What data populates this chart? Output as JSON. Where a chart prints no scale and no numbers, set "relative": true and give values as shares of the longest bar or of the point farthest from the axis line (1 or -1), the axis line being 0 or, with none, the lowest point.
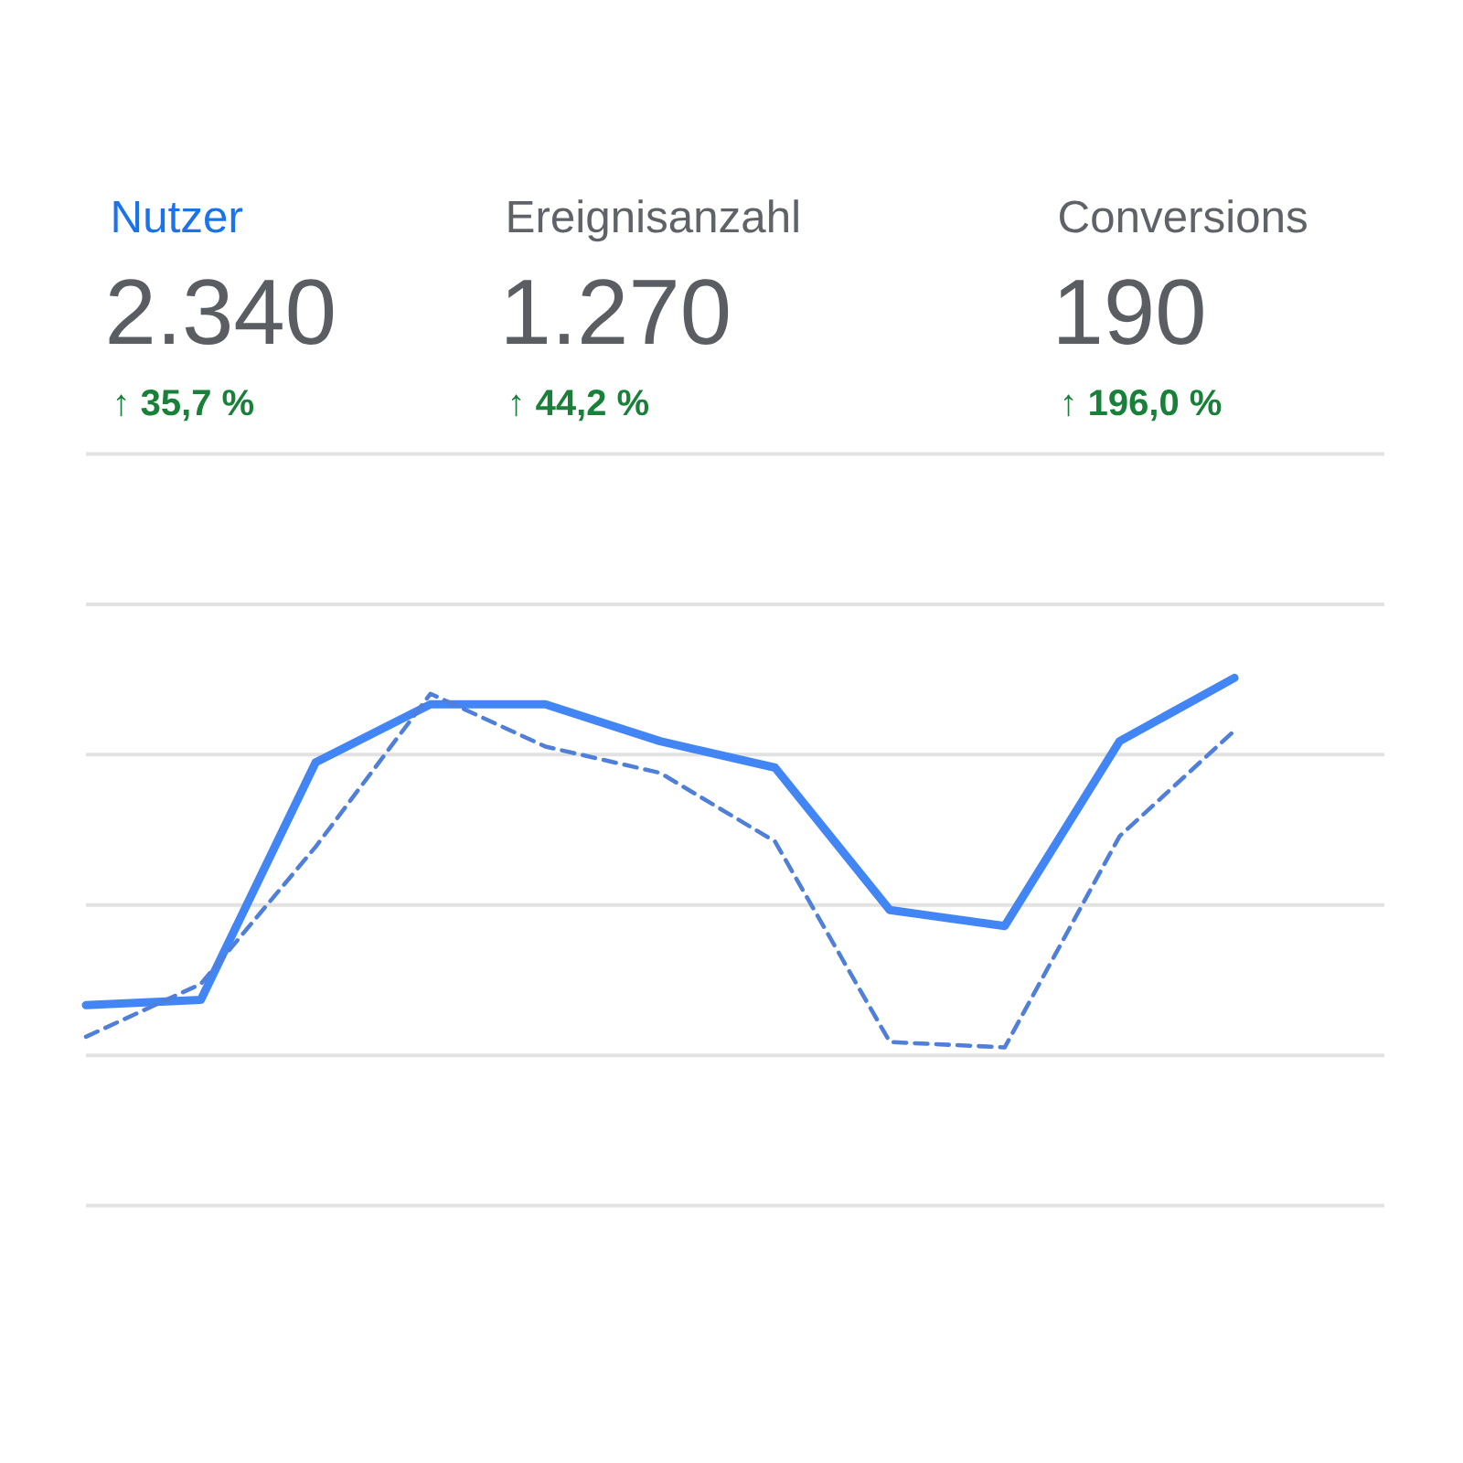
{
  "chart_data": [
    {
      "type": "other",
      "title": "Nutzer",
      "annotations": [
        "2.340",
        "↑ 35,7 %"
      ]
    },
    {
      "type": "other",
      "title": "Ereignisanzahl",
      "annotations": [
        "1.270",
        "↑ 44,2 %"
      ]
    },
    {
      "type": "other",
      "title": "Conversions",
      "annotations": [
        "190",
        "↑ 196,0 %"
      ]
    },
    {
      "type": "line",
      "relative": true,
      "grid": "y",
      "categories": [
        null,
        null,
        null,
        null,
        null,
        null,
        null,
        null,
        null,
        null,
        null
      ],
      "series": [
        {
          "color": "#4285f4",
          "values": [
            0.38,
            0.39,
            0.84,
            0.95,
            0.95,
            0.88,
            0.83,
            0.56,
            0.53,
            0.88,
            1.0
          ]
        },
        {
          "color": "#4f7fd9",
          "line_style": "dashed",
          "values": [
            0.32,
            0.42,
            0.68,
            0.97,
            0.87,
            0.82,
            0.69,
            0.31,
            0.3,
            0.7,
            0.9
          ]
        }
      ]
    }
  ]
}
